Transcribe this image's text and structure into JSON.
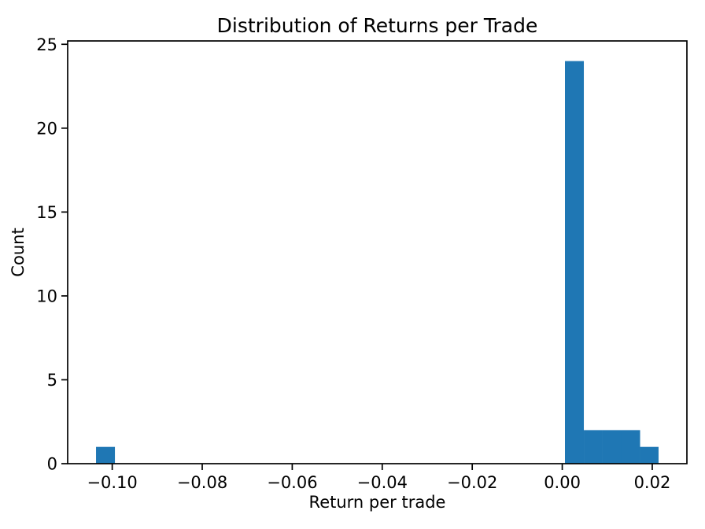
{
  "chart_data": {
    "type": "histogram",
    "title": "Distribution of Returns per Trade",
    "xlabel": "Return per trade",
    "ylabel": "Count",
    "bar_color": "#1f77b4",
    "spine_color": "#000000",
    "text_color": "#000000",
    "grid": false,
    "xlim": [
      -0.1099,
      0.0277
    ],
    "ylim": [
      0,
      25.2
    ],
    "x_ticks": [
      {
        "value": -0.1,
        "label": "−0.10"
      },
      {
        "value": -0.08,
        "label": "−0.08"
      },
      {
        "value": -0.06,
        "label": "−0.06"
      },
      {
        "value": -0.04,
        "label": "−0.04"
      },
      {
        "value": -0.02,
        "label": "−0.02"
      },
      {
        "value": 0.0,
        "label": "0.00"
      },
      {
        "value": 0.02,
        "label": "0.02"
      }
    ],
    "y_ticks": [
      {
        "value": 0,
        "label": "0"
      },
      {
        "value": 5,
        "label": "5"
      },
      {
        "value": 10,
        "label": "10"
      },
      {
        "value": 15,
        "label": "15"
      },
      {
        "value": 20,
        "label": "20"
      },
      {
        "value": 25,
        "label": "25"
      }
    ],
    "bins": [
      {
        "x0": -0.1036,
        "x1": -0.0994,
        "count": 1
      },
      {
        "x0": 0.0006,
        "x1": 0.0048,
        "count": 24
      },
      {
        "x0": 0.0048,
        "x1": 0.0089,
        "count": 2
      },
      {
        "x0": 0.0089,
        "x1": 0.0131,
        "count": 2
      },
      {
        "x0": 0.0131,
        "x1": 0.0173,
        "count": 2
      },
      {
        "x0": 0.0173,
        "x1": 0.0214,
        "count": 1
      }
    ]
  }
}
